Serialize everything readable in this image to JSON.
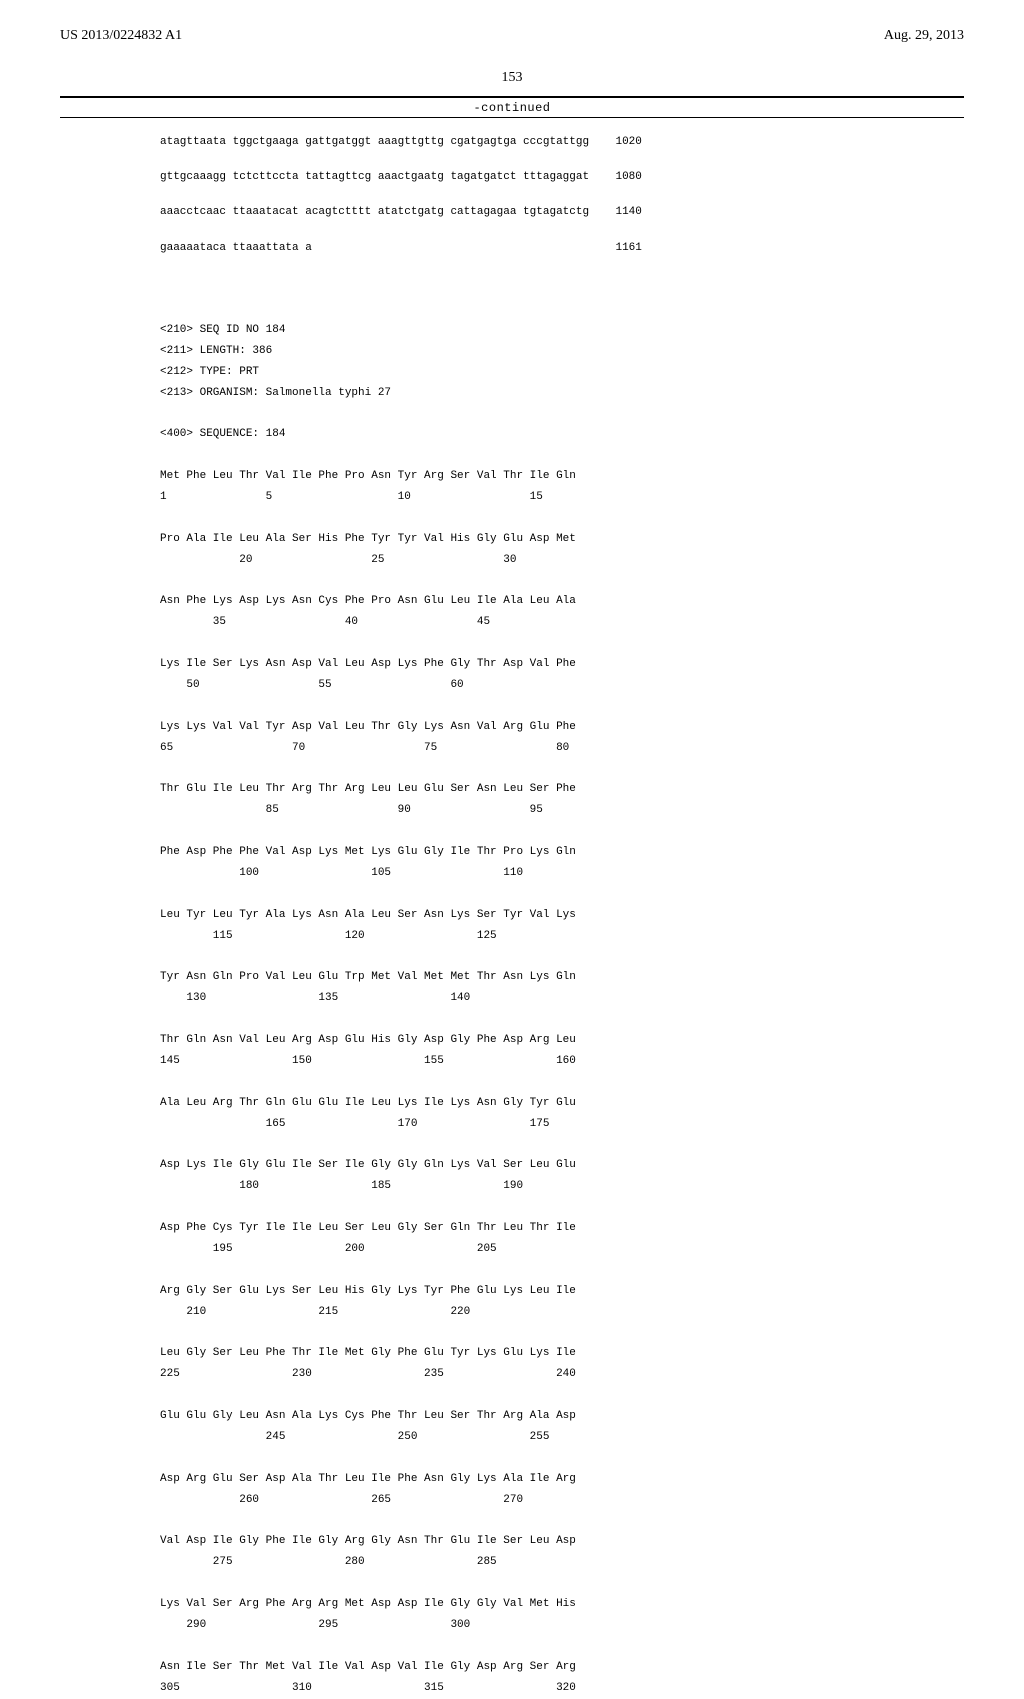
{
  "header": {
    "pubnum": "US 2013/0224832 A1",
    "pubdate": "Aug. 29, 2013"
  },
  "page_num": "153",
  "continued_label": "-continued",
  "dna": {
    "lines": [
      {
        "seq": "atagttaata tggctgaaga gattgatggt aaagttgttg cgatgagtga cccgtattgg",
        "pos": "1020"
      },
      {
        "seq": "gttgcaaagg tctcttccta tattagttcg aaactgaatg tagatgatct tttagaggat",
        "pos": "1080"
      },
      {
        "seq": "aaacctcaac ttaaatacat acagtctttt atatctgatg cattagagaa tgtagatctg",
        "pos": "1140"
      },
      {
        "seq": "gaaaaataca ttaaattata a                                          ",
        "pos": "1161"
      }
    ]
  },
  "seq_header": {
    "line1": "<210> SEQ ID NO 184",
    "line2": "<211> LENGTH: 386",
    "line3": "<212> TYPE: PRT",
    "line4": "<213> ORGANISM: Salmonella typhi 27",
    "line5": "<400> SEQUENCE: 184"
  },
  "protein": {
    "rows": [
      {
        "aa": "Met Phe Leu Thr Val Ile Phe Pro Asn Tyr Arg Ser Val Thr Ile Gln",
        "nums": "1               5                   10                  15"
      },
      {
        "aa": "Pro Ala Ile Leu Ala Ser His Phe Tyr Tyr Val His Gly Glu Asp Met",
        "nums": "            20                  25                  30"
      },
      {
        "aa": "Asn Phe Lys Asp Lys Asn Cys Phe Pro Asn Glu Leu Ile Ala Leu Ala",
        "nums": "        35                  40                  45"
      },
      {
        "aa": "Lys Ile Ser Lys Asn Asp Val Leu Asp Lys Phe Gly Thr Asp Val Phe",
        "nums": "    50                  55                  60"
      },
      {
        "aa": "Lys Lys Val Val Tyr Asp Val Leu Thr Gly Lys Asn Val Arg Glu Phe",
        "nums": "65                  70                  75                  80"
      },
      {
        "aa": "Thr Glu Ile Leu Thr Arg Thr Arg Leu Leu Glu Ser Asn Leu Ser Phe",
        "nums": "                85                  90                  95"
      },
      {
        "aa": "Phe Asp Phe Phe Val Asp Lys Met Lys Glu Gly Ile Thr Pro Lys Gln",
        "nums": "            100                 105                 110"
      },
      {
        "aa": "Leu Tyr Leu Tyr Ala Lys Asn Ala Leu Ser Asn Lys Ser Tyr Val Lys",
        "nums": "        115                 120                 125"
      },
      {
        "aa": "Tyr Asn Gln Pro Val Leu Glu Trp Met Val Met Met Thr Asn Lys Gln",
        "nums": "    130                 135                 140"
      },
      {
        "aa": "Thr Gln Asn Val Leu Arg Asp Glu His Gly Asp Gly Phe Asp Arg Leu",
        "nums": "145                 150                 155                 160"
      },
      {
        "aa": "Ala Leu Arg Thr Gln Glu Glu Ile Leu Lys Ile Lys Asn Gly Tyr Glu",
        "nums": "                165                 170                 175"
      },
      {
        "aa": "Asp Lys Ile Gly Glu Ile Ser Ile Gly Gly Gln Lys Val Ser Leu Glu",
        "nums": "            180                 185                 190"
      },
      {
        "aa": "Asp Phe Cys Tyr Ile Ile Leu Ser Leu Gly Ser Gln Thr Leu Thr Ile",
        "nums": "        195                 200                 205"
      },
      {
        "aa": "Arg Gly Ser Glu Lys Ser Leu His Gly Lys Tyr Phe Glu Lys Leu Ile",
        "nums": "    210                 215                 220"
      },
      {
        "aa": "Leu Gly Ser Leu Phe Thr Ile Met Gly Phe Glu Tyr Lys Glu Lys Ile",
        "nums": "225                 230                 235                 240"
      },
      {
        "aa": "Glu Glu Gly Leu Asn Ala Lys Cys Phe Thr Leu Ser Thr Arg Ala Asp",
        "nums": "                245                 250                 255"
      },
      {
        "aa": "Asp Arg Glu Ser Asp Ala Thr Leu Ile Phe Asn Gly Lys Ala Ile Arg",
        "nums": "            260                 265                 270"
      },
      {
        "aa": "Val Asp Ile Gly Phe Ile Gly Arg Gly Asn Thr Glu Ile Ser Leu Asp",
        "nums": "        275                 280                 285"
      },
      {
        "aa": "Lys Val Ser Arg Phe Arg Arg Met Asp Asp Ile Gly Gly Val Met His",
        "nums": "    290                 295                 300"
      },
      {
        "aa": "Asn Ile Ser Thr Met Val Ile Val Asp Val Ile Gly Asp Arg Ser Arg",
        "nums": "305                 310                 315                 320"
      }
    ]
  }
}
